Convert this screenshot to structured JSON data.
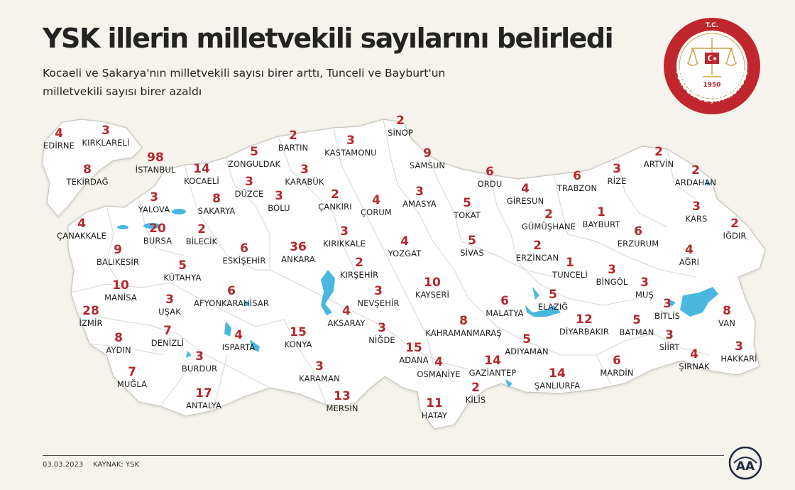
{
  "header": {
    "title": "YSK illerin milletvekili sayılarını belirledi",
    "subtitle": "Kocaeli ve Sakarya'nın milletvekili sayısı birer arttı, Tunceli ve Bayburt'un milletvekili sayısı birer azaldı"
  },
  "seal": {
    "top_text": "T.C.",
    "year": "1950",
    "ring_text": "YÜKSEK SEÇİM KURULU",
    "color": "#c0262d"
  },
  "colors": {
    "background": "#f6f3ec",
    "land": "#ffffff",
    "border": "#c9c6bf",
    "water": "#49b7df",
    "number": "#b3282d"
  },
  "provinces": [
    {
      "name": "EDİRNE",
      "seats": "4"
    },
    {
      "name": "KIRKLARELİ",
      "seats": "3"
    },
    {
      "name": "İSTANBUL",
      "seats": "98"
    },
    {
      "name": "TEKİRDAĞ",
      "seats": "8"
    },
    {
      "name": "KOCAELİ",
      "seats": "14"
    },
    {
      "name": "ZONGULDAK",
      "seats": "5"
    },
    {
      "name": "BARTIN",
      "seats": "2"
    },
    {
      "name": "KASTAMONU",
      "seats": "3"
    },
    {
      "name": "SİNOP",
      "seats": "2"
    },
    {
      "name": "SAMSUN",
      "seats": "9"
    },
    {
      "name": "ORDU",
      "seats": "6"
    },
    {
      "name": "GİRESUN",
      "seats": "4"
    },
    {
      "name": "TRABZON",
      "seats": "6"
    },
    {
      "name": "RİZE",
      "seats": "3"
    },
    {
      "name": "ARTVİN",
      "seats": "2"
    },
    {
      "name": "ARDAHAN",
      "seats": "2"
    },
    {
      "name": "KARABÜK",
      "seats": "3"
    },
    {
      "name": "DÜZCE",
      "seats": "3"
    },
    {
      "name": "BOLU",
      "seats": "3"
    },
    {
      "name": "ÇANKIRI",
      "seats": "2"
    },
    {
      "name": "ÇORUM",
      "seats": "4"
    },
    {
      "name": "AMASYA",
      "seats": "3"
    },
    {
      "name": "TOKAT",
      "seats": "5"
    },
    {
      "name": "YALOVA",
      "seats": "3"
    },
    {
      "name": "SAKARYA",
      "seats": "8"
    },
    {
      "name": "GÜMÜŞHANE",
      "seats": "2"
    },
    {
      "name": "BAYBURT",
      "seats": "1"
    },
    {
      "name": "KARS",
      "seats": "3"
    },
    {
      "name": "IĞDIR",
      "seats": "2"
    },
    {
      "name": "ÇANAKKALE",
      "seats": "4"
    },
    {
      "name": "BURSA",
      "seats": "20"
    },
    {
      "name": "BİLECİK",
      "seats": "2"
    },
    {
      "name": "ESKİŞEHİR",
      "seats": "6"
    },
    {
      "name": "ANKARA",
      "seats": "36"
    },
    {
      "name": "KIRIKKALE",
      "seats": "3"
    },
    {
      "name": "YOZGAT",
      "seats": "4"
    },
    {
      "name": "SİVAS",
      "seats": "5"
    },
    {
      "name": "ERZİNCAN",
      "seats": "2"
    },
    {
      "name": "ERZURUM",
      "seats": "6"
    },
    {
      "name": "AĞRI",
      "seats": "4"
    },
    {
      "name": "BALIKESİR",
      "seats": "9"
    },
    {
      "name": "KÜTAHYA",
      "seats": "5"
    },
    {
      "name": "KIRŞEHİR",
      "seats": "2"
    },
    {
      "name": "TUNCELİ",
      "seats": "1"
    },
    {
      "name": "BİNGÖL",
      "seats": "3"
    },
    {
      "name": "MUŞ",
      "seats": "3"
    },
    {
      "name": "MANİSA",
      "seats": "10"
    },
    {
      "name": "UŞAK",
      "seats": "3"
    },
    {
      "name": "AFYONKARAHİSAR",
      "seats": "6"
    },
    {
      "name": "NEVŞEHİR",
      "seats": "3"
    },
    {
      "name": "KAYSERİ",
      "seats": "10"
    },
    {
      "name": "MALATYA",
      "seats": "6"
    },
    {
      "name": "ELAZIĞ",
      "seats": "5"
    },
    {
      "name": "BİTLİS",
      "seats": "3"
    },
    {
      "name": "İZMİR",
      "seats": "28"
    },
    {
      "name": "AKSARAY",
      "seats": "4"
    },
    {
      "name": "VAN",
      "seats": "8"
    },
    {
      "name": "DENİZLİ",
      "seats": "7"
    },
    {
      "name": "KAHRAMANMARAŞ",
      "seats": "8"
    },
    {
      "name": "DİYARBAKIR",
      "seats": "12"
    },
    {
      "name": "BATMAN",
      "seats": "5"
    },
    {
      "name": "AYDIN",
      "seats": "8"
    },
    {
      "name": "ISPARTA",
      "seats": "4"
    },
    {
      "name": "KONYA",
      "seats": "15"
    },
    {
      "name": "NİĞDE",
      "seats": "3"
    },
    {
      "name": "SİİRT",
      "seats": "3"
    },
    {
      "name": "ADIYAMAN",
      "seats": "5"
    },
    {
      "name": "BURDUR",
      "seats": "3"
    },
    {
      "name": "ADANA",
      "seats": "15"
    },
    {
      "name": "HAKKARİ",
      "seats": "3"
    },
    {
      "name": "ŞIRNAK",
      "seats": "4"
    },
    {
      "name": "OSMANİYE",
      "seats": "4"
    },
    {
      "name": "GAZİANTEP",
      "seats": "14"
    },
    {
      "name": "MUĞLA",
      "seats": "7"
    },
    {
      "name": "KARAMAN",
      "seats": "3"
    },
    {
      "name": "ŞANLIURFA",
      "seats": "14"
    },
    {
      "name": "MARDİN",
      "seats": "6"
    },
    {
      "name": "KİLİS",
      "seats": "2"
    },
    {
      "name": "ANTALYA",
      "seats": "17"
    },
    {
      "name": "MERSİN",
      "seats": "13"
    },
    {
      "name": "HATAY",
      "seats": "11"
    }
  ],
  "footer": {
    "date": "03.03.2023",
    "source": "KAYNAK: YSK",
    "agency_logo": "AA"
  }
}
